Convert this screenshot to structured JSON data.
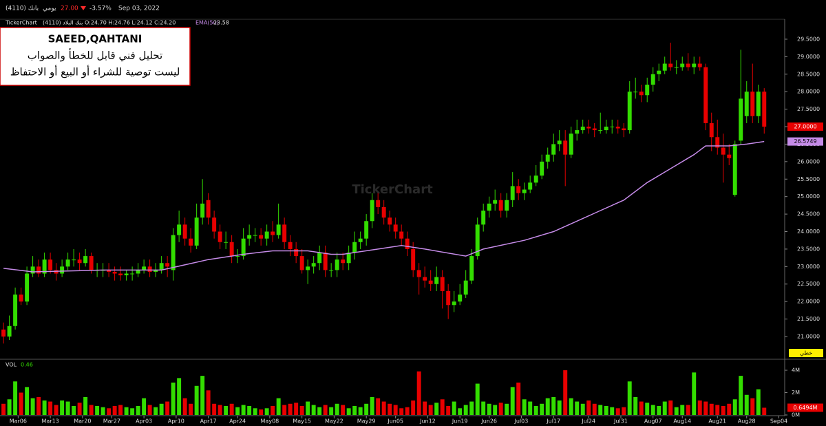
{
  "chart_data": {
    "type": "candlestick",
    "header": {
      "symbol": "بانك (4110)",
      "period": "يومي",
      "price": "27.00",
      "change": "-3.57%",
      "date": "Sep 03, 2022",
      "brand": "TickerChart",
      "ohlc_text": "(4110) بنك البلاد O:24.70 H:24.76 L:24.12 C:24.20",
      "ema_name": "EMA(50)",
      "ema_value": "23.58"
    },
    "annotation": [
      "SAEED,QAHTANI",
      "تحليل فني قابل للخطأ والصواب",
      "ليست توصية للشراء أو البيع أو الاحتفاظ"
    ],
    "watermark": "TickerChart",
    "chart_mode": "خطي",
    "up_color": "#33dd00",
    "down_color": "#e80000",
    "open": [
      21.2,
      21.0,
      21.3,
      22.2,
      22.0,
      22.8,
      23.0,
      22.8,
      23.2,
      22.9,
      22.8,
      23.0,
      23.2,
      23.2,
      23.1,
      23.3,
      22.9,
      22.9,
      22.9,
      22.85,
      22.8,
      22.75,
      22.8,
      22.8,
      22.9,
      23.0,
      22.85,
      22.9,
      23.1,
      22.9,
      23.9,
      24.2,
      23.8,
      23.6,
      24.4,
      24.9,
      24.4,
      24.0,
      23.7,
      23.7,
      23.3,
      23.3,
      23.8,
      23.9,
      23.9,
      23.8,
      24.0,
      23.9,
      24.2,
      23.7,
      23.5,
      23.3,
      22.9,
      23.0,
      23.1,
      23.4,
      22.9,
      22.9,
      23.2,
      23.1,
      23.4,
      23.7,
      23.8,
      24.3,
      24.9,
      24.7,
      24.4,
      24.2,
      24.0,
      23.8,
      23.5,
      22.9,
      22.7,
      22.6,
      22.5,
      22.7,
      22.3,
      21.9,
      22.0,
      22.2,
      22.6,
      23.3,
      24.2,
      24.6,
      24.8,
      24.9,
      24.6,
      24.9,
      25.3,
      25.1,
      25.2,
      25.4,
      25.6,
      26.0,
      26.2,
      26.5,
      26.6,
      26.2,
      26.8,
      26.9,
      27.0,
      26.95,
      26.9,
      26.9,
      27.0,
      27.0,
      26.95,
      26.9,
      28.0,
      28.0,
      27.9,
      28.2,
      28.5,
      28.6,
      28.8,
      28.7,
      28.7,
      28.8,
      28.7,
      28.8,
      28.7,
      27.1,
      26.7,
      26.4,
      26.2,
      25.05,
      26.6,
      27.3,
      28.0,
      27.3,
      28.0
    ],
    "high": [
      21.4,
      21.6,
      22.4,
      22.4,
      23.0,
      23.3,
      23.2,
      23.4,
      23.4,
      23.1,
      23.2,
      23.4,
      23.5,
      23.4,
      23.5,
      23.4,
      23.1,
      23.1,
      23.1,
      23.0,
      23.0,
      22.9,
      23.0,
      23.1,
      23.2,
      23.2,
      23.1,
      23.3,
      23.3,
      24.1,
      24.6,
      24.4,
      24.1,
      24.8,
      25.5,
      25.1,
      24.6,
      24.2,
      24.0,
      23.9,
      23.5,
      24.1,
      24.2,
      24.1,
      24.1,
      24.2,
      24.3,
      24.8,
      24.4,
      23.9,
      23.7,
      23.5,
      23.2,
      23.3,
      23.6,
      23.6,
      23.1,
      23.4,
      23.4,
      23.6,
      24.0,
      24.0,
      24.5,
      25.1,
      25.1,
      24.9,
      24.6,
      24.4,
      24.2,
      24.0,
      23.7,
      23.1,
      23.0,
      22.9,
      23.0,
      22.9,
      22.5,
      22.3,
      22.5,
      22.9,
      23.5,
      24.4,
      24.8,
      25.0,
      25.2,
      25.1,
      25.1,
      25.7,
      25.5,
      25.4,
      25.6,
      25.9,
      26.2,
      26.4,
      26.8,
      26.9,
      26.9,
      27.0,
      27.2,
      27.2,
      27.2,
      27.1,
      27.4,
      27.2,
      27.2,
      27.2,
      27.1,
      28.3,
      28.4,
      28.2,
      28.4,
      28.7,
      28.8,
      29.0,
      29.4,
      28.9,
      29.0,
      29.1,
      29.0,
      29.0,
      28.8,
      27.4,
      27.2,
      26.8,
      26.5,
      26.6,
      29.2,
      28.3,
      28.8,
      28.2,
      28.1
    ],
    "low": [
      20.8,
      20.9,
      21.2,
      21.9,
      21.9,
      22.7,
      22.7,
      22.7,
      22.8,
      22.6,
      22.7,
      22.9,
      23.0,
      22.9,
      23.0,
      22.8,
      22.7,
      22.7,
      22.7,
      22.6,
      22.6,
      22.6,
      22.6,
      22.7,
      22.8,
      22.7,
      22.7,
      22.8,
      22.7,
      22.6,
      23.7,
      23.6,
      23.4,
      23.5,
      24.2,
      24.2,
      23.8,
      23.5,
      23.5,
      23.1,
      23.1,
      23.2,
      23.6,
      23.7,
      23.6,
      23.6,
      23.7,
      23.8,
      23.5,
      23.3,
      23.1,
      22.8,
      22.5,
      22.8,
      22.9,
      22.7,
      22.7,
      22.7,
      22.9,
      22.9,
      23.2,
      23.5,
      23.6,
      24.1,
      24.5,
      24.2,
      24.0,
      23.8,
      23.6,
      23.3,
      22.7,
      22.2,
      22.4,
      22.3,
      22.3,
      21.8,
      21.5,
      21.7,
      21.9,
      22.1,
      22.5,
      23.2,
      24.0,
      24.4,
      24.6,
      24.4,
      24.4,
      24.7,
      24.9,
      24.9,
      25.1,
      25.3,
      25.5,
      25.8,
      26.0,
      26.3,
      25.3,
      26.1,
      26.6,
      26.8,
      26.8,
      26.7,
      26.8,
      26.8,
      26.8,
      26.8,
      26.7,
      26.8,
      27.8,
      27.7,
      27.7,
      28.0,
      28.3,
      28.5,
      28.6,
      28.5,
      28.6,
      28.6,
      28.5,
      28.6,
      26.9,
      26.3,
      26.2,
      25.4,
      25.9,
      25.0,
      26.5,
      27.1,
      27.1,
      27.1,
      26.8
    ],
    "close": [
      21.0,
      21.3,
      22.2,
      22.0,
      22.8,
      23.0,
      22.8,
      23.2,
      22.9,
      22.8,
      23.0,
      23.2,
      23.2,
      23.1,
      23.3,
      22.9,
      22.9,
      22.9,
      22.85,
      22.8,
      22.75,
      22.8,
      22.8,
      22.9,
      23.0,
      22.85,
      22.9,
      23.1,
      23.0,
      23.9,
      24.2,
      23.8,
      23.6,
      24.4,
      24.8,
      24.4,
      24.0,
      23.7,
      23.7,
      23.3,
      23.3,
      23.8,
      23.9,
      23.9,
      23.8,
      24.0,
      23.9,
      24.2,
      23.7,
      23.5,
      23.3,
      22.9,
      23.0,
      23.1,
      23.4,
      22.9,
      22.9,
      23.2,
      23.1,
      23.4,
      23.7,
      23.8,
      24.3,
      24.9,
      24.7,
      24.4,
      24.2,
      24.0,
      23.8,
      23.5,
      22.9,
      22.7,
      22.6,
      22.5,
      22.7,
      22.3,
      21.9,
      22.0,
      22.2,
      22.6,
      23.3,
      24.2,
      24.6,
      24.8,
      24.9,
      24.6,
      24.9,
      25.3,
      25.1,
      25.2,
      25.4,
      25.6,
      26.0,
      26.2,
      26.5,
      26.6,
      26.2,
      26.8,
      26.9,
      27.0,
      26.95,
      26.9,
      26.9,
      27.0,
      27.0,
      26.95,
      26.9,
      28.0,
      28.0,
      27.9,
      28.2,
      28.5,
      28.6,
      28.8,
      28.7,
      28.7,
      28.8,
      28.7,
      28.8,
      28.7,
      27.1,
      26.7,
      26.4,
      26.2,
      26.1,
      26.5,
      27.8,
      28.0,
      27.3,
      28.0,
      27.0
    ],
    "last_close_label": "27.0000",
    "volume": {
      "name": "VOL",
      "value_text": "0.46",
      "values": [
        1.0,
        1.4,
        3.0,
        2.0,
        2.5,
        1.5,
        1.6,
        1.3,
        1.2,
        0.9,
        1.3,
        1.2,
        0.8,
        1.1,
        1.6,
        0.9,
        0.8,
        0.7,
        0.6,
        0.8,
        0.9,
        0.7,
        0.6,
        0.8,
        1.5,
        0.9,
        0.7,
        1.0,
        1.2,
        2.9,
        3.3,
        1.5,
        1.0,
        2.6,
        3.5,
        2.2,
        1.0,
        0.9,
        0.8,
        1.0,
        0.7,
        0.9,
        0.8,
        0.6,
        0.5,
        0.6,
        0.8,
        1.5,
        0.9,
        1.0,
        1.1,
        0.8,
        1.2,
        0.9,
        0.7,
        0.9,
        0.7,
        1.0,
        0.9,
        0.6,
        0.8,
        0.7,
        1.0,
        1.6,
        1.5,
        1.2,
        1.0,
        0.9,
        0.6,
        0.7,
        1.3,
        3.9,
        1.2,
        0.9,
        1.1,
        1.4,
        0.8,
        1.2,
        0.6,
        0.9,
        1.2,
        2.8,
        1.2,
        1.0,
        0.9,
        1.1,
        1.0,
        2.5,
        2.9,
        1.4,
        1.2,
        0.8,
        1.0,
        1.5,
        1.6,
        1.3,
        4.0,
        1.5,
        1.2,
        1.0,
        1.3,
        1.0,
        0.9,
        0.8,
        0.7,
        0.6,
        0.7,
        3.0,
        1.6,
        1.2,
        1.1,
        0.9,
        0.8,
        1.2,
        1.3,
        0.7,
        0.9,
        0.9,
        3.8,
        1.3,
        1.2,
        1.0,
        0.9,
        0.8,
        1.0,
        1.4,
        3.5,
        1.8,
        1.5,
        2.3,
        0.6494
      ],
      "last_label": "0.6494M",
      "ylim": [
        0,
        4.8
      ],
      "yticks": [
        {
          "value": 4,
          "label": "4M"
        },
        {
          "value": 2,
          "label": "2M"
        },
        {
          "value": 0,
          "label": "0M"
        }
      ]
    },
    "ema": {
      "name": "EMA(50)",
      "color": "#c58be8",
      "x": [
        0,
        5,
        17,
        27,
        35,
        41,
        46,
        52,
        56,
        58,
        64,
        68,
        72,
        79,
        82,
        89,
        94,
        98,
        102,
        106,
        110,
        114,
        118,
        120,
        124,
        127,
        130
      ],
      "values": [
        22.95,
        22.85,
        22.9,
        22.9,
        23.2,
        23.35,
        23.45,
        23.45,
        23.35,
        23.35,
        23.5,
        23.6,
        23.5,
        23.3,
        23.5,
        23.75,
        24.0,
        24.3,
        24.6,
        24.9,
        25.4,
        25.8,
        26.2,
        26.45,
        26.45,
        26.5,
        26.5749
      ],
      "last_label": "26.5749"
    },
    "xlim": [
      -0.6,
      133.5
    ],
    "xticks": [
      {
        "value": 2.5,
        "label": "Mar06"
      },
      {
        "value": 8,
        "label": "Mar13"
      },
      {
        "value": 13.5,
        "label": "Mar20"
      },
      {
        "value": 18.5,
        "label": "Mar27"
      },
      {
        "value": 24,
        "label": "Apr03"
      },
      {
        "value": 29.5,
        "label": "Apr10"
      },
      {
        "value": 35,
        "label": "Apr17"
      },
      {
        "value": 40,
        "label": "Apr24"
      },
      {
        "value": 45.5,
        "label": "May08"
      },
      {
        "value": 51,
        "label": "May15"
      },
      {
        "value": 56.5,
        "label": "May22"
      },
      {
        "value": 62,
        "label": "May29"
      },
      {
        "value": 67,
        "label": "Jun05"
      },
      {
        "value": 72.5,
        "label": "Jun12"
      },
      {
        "value": 78,
        "label": "Jun19"
      },
      {
        "value": 83,
        "label": "Jun26"
      },
      {
        "value": 88.5,
        "label": "Jul03"
      },
      {
        "value": 94,
        "label": "Jul17"
      },
      {
        "value": 100,
        "label": "Jul24"
      },
      {
        "value": 105.5,
        "label": "Jul31"
      },
      {
        "value": 111,
        "label": "Aug07"
      },
      {
        "value": 116,
        "label": "Aug14"
      },
      {
        "value": 122,
        "label": "Aug21"
      },
      {
        "value": 127,
        "label": "Aug28"
      },
      {
        "value": 132.5,
        "label": "Sep04"
      }
    ],
    "ylim": [
      20.39,
      30.03
    ],
    "yticks": [
      {
        "value": 21,
        "label": "21.0000"
      },
      {
        "value": 21.5,
        "label": "21.5000"
      },
      {
        "value": 22,
        "label": "22.0000"
      },
      {
        "value": 22.5,
        "label": "22.5000"
      },
      {
        "value": 23,
        "label": "23.0000"
      },
      {
        "value": 23.5,
        "label": "23.5000"
      },
      {
        "value": 24,
        "label": "24.0000"
      },
      {
        "value": 24.5,
        "label": "24.5000"
      },
      {
        "value": 25,
        "label": "25.0000"
      },
      {
        "value": 25.5,
        "label": "25.5000"
      },
      {
        "value": 26,
        "label": "26.0000"
      },
      {
        "value": 26.5,
        "label": "26.5000"
      },
      {
        "value": 27,
        "label": "27.0000"
      },
      {
        "value": 27.5,
        "label": "27.5000"
      },
      {
        "value": 28,
        "label": "28.0000"
      },
      {
        "value": 28.5,
        "label": "28.5000"
      },
      {
        "value": 29,
        "label": "29.0000"
      },
      {
        "value": 29.5,
        "label": "29.5000"
      }
    ]
  }
}
